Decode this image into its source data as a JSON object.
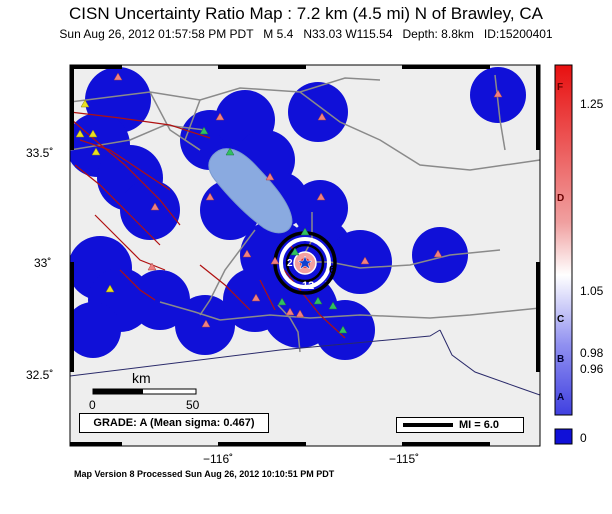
{
  "header": {
    "title": "CISN Uncertainty Ratio Map : 7.2 km (4.5 mi) N of Brawley, CA",
    "subtitle": "Sun Aug 26, 2012 01:57:58 PM PDT   M 5.4   N33.03 W115.54   Depth: 8.8km   ID:15200401"
  },
  "map": {
    "lat_labels": [
      "33.5˚",
      "33˚",
      "32.5˚"
    ],
    "lon_labels": [
      "−116˚",
      "−115˚"
    ],
    "scale_unit": "km",
    "scale_ticks": [
      "0",
      "50"
    ],
    "contour_labels": [
      "2",
      "12",
      "6"
    ],
    "grade": "GRADE: A (Mean sigma: 0.467)",
    "mi_legend": "MI = 6.0",
    "colors": {
      "low": "#1010d8",
      "background": "#eeeeee",
      "lake": "#8aaae0",
      "fault": "#b01010",
      "road": "#8a8a8a",
      "station_red": "#f08080",
      "station_green": "#30c060",
      "station_yellow": "#e8e020"
    }
  },
  "colorbar": {
    "letters": [
      "F",
      "D",
      "C",
      "B",
      "A"
    ],
    "ticks": [
      "1.25",
      "1.05",
      "0.98",
      "0.96",
      "0"
    ]
  },
  "footer": {
    "processed": "Map Version 8 Processed Sun Aug 26, 2012 10:10:51 PM PDT"
  }
}
